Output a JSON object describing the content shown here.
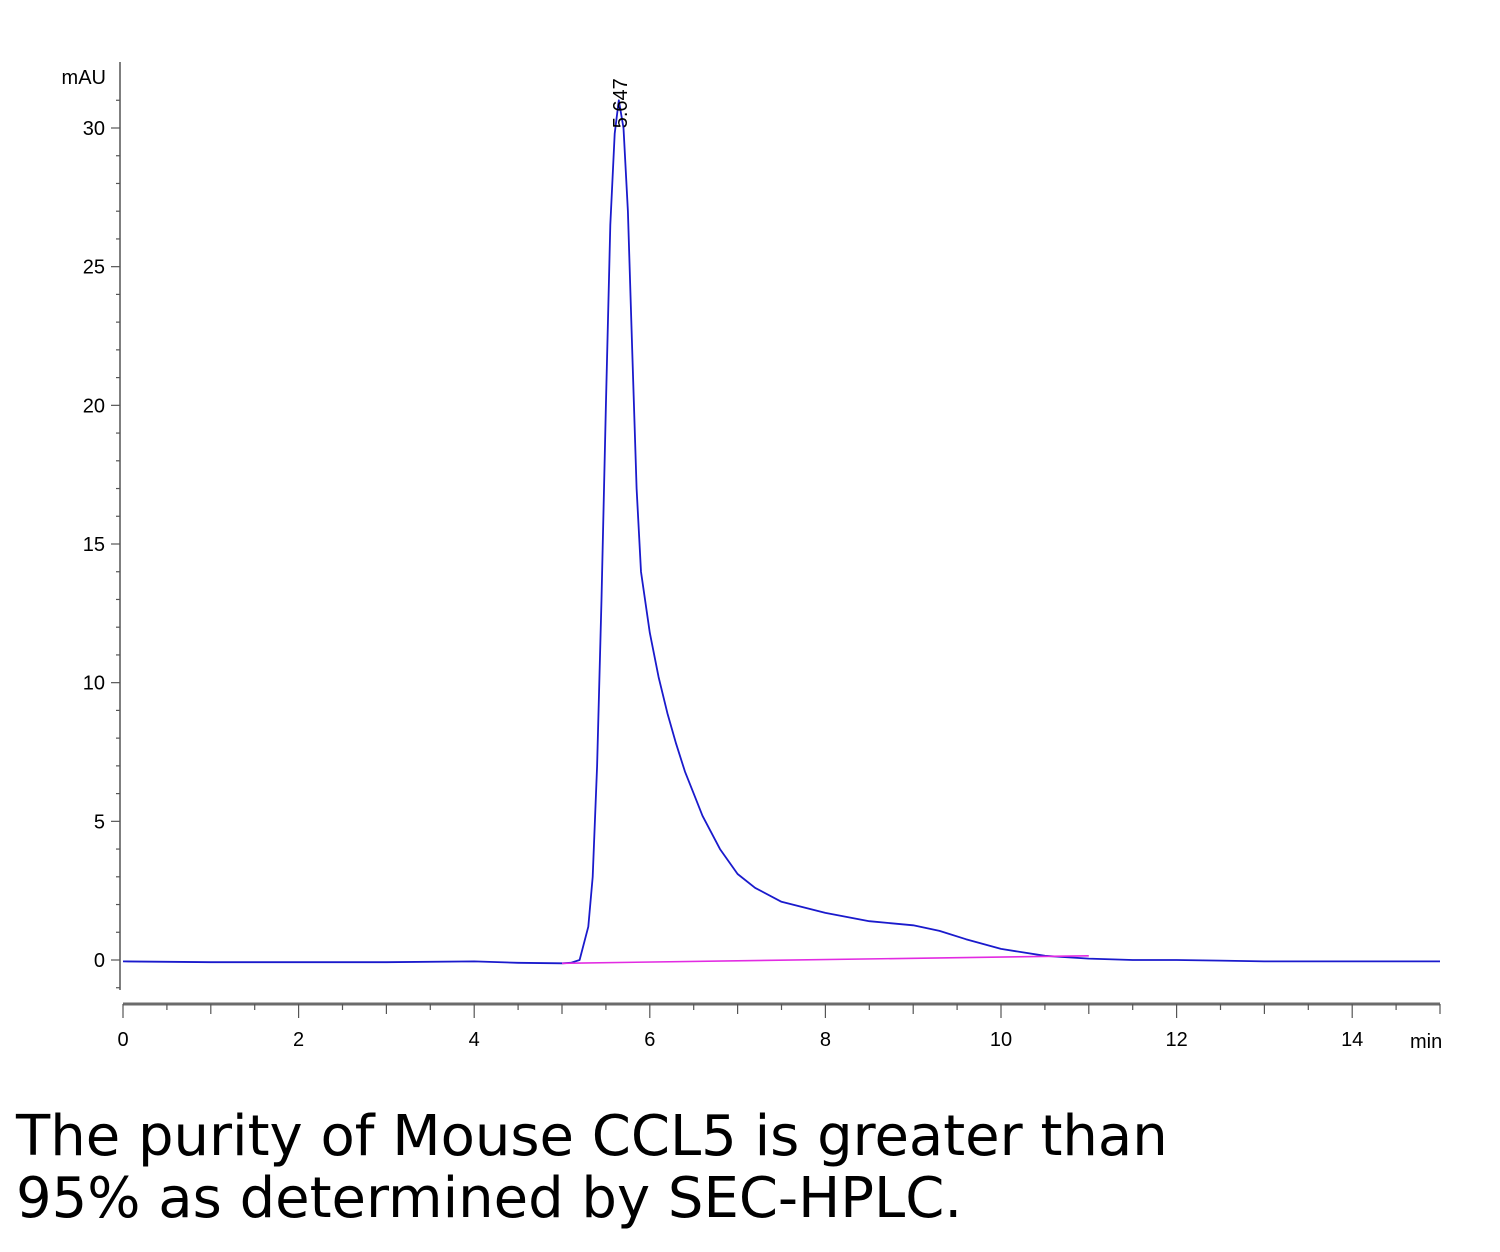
{
  "chart_data": {
    "type": "line",
    "ylabel": "mAU",
    "xlabel": "min",
    "xlim": [
      0,
      15
    ],
    "ylim": [
      -1.6,
      31.8
    ],
    "x_ticks": [
      0,
      2,
      4,
      6,
      8,
      10,
      12,
      14
    ],
    "y_ticks": [
      0,
      5,
      10,
      15,
      20,
      25,
      30
    ],
    "grid": false,
    "legend": "none",
    "peak_annotation": {
      "label": "5.647",
      "x": 5.647,
      "y": 31.0
    },
    "series": [
      {
        "color": "#1a1acc",
        "x": [
          0,
          1,
          2,
          3,
          4,
          4.5,
          5.0,
          5.1,
          5.2,
          5.3,
          5.35,
          5.4,
          5.45,
          5.5,
          5.55,
          5.6,
          5.647,
          5.7,
          5.75,
          5.8,
          5.85,
          5.9,
          6.0,
          6.1,
          6.2,
          6.3,
          6.4,
          6.5,
          6.6,
          6.8,
          7.0,
          7.2,
          7.5,
          8.0,
          8.5,
          9.0,
          9.3,
          9.6,
          10.0,
          10.5,
          11.0,
          11.5,
          12.0,
          12.5,
          13.0,
          14.0,
          15.0
        ],
        "y": [
          -0.05,
          -0.08,
          -0.08,
          -0.08,
          -0.05,
          -0.1,
          -0.12,
          -0.1,
          0.0,
          1.2,
          3.0,
          7.0,
          13.0,
          20.0,
          26.5,
          29.8,
          31.0,
          30.0,
          27.0,
          22.0,
          17.0,
          14.0,
          11.8,
          10.2,
          8.9,
          7.8,
          6.8,
          6.0,
          5.2,
          4.0,
          3.1,
          2.6,
          2.1,
          1.7,
          1.4,
          1.25,
          1.05,
          0.75,
          0.4,
          0.15,
          0.05,
          0.0,
          0.0,
          -0.02,
          -0.05,
          -0.05,
          -0.05
        ]
      },
      {
        "color": "#e22be2",
        "x": [
          5.0,
          11.0
        ],
        "y": [
          -0.12,
          0.15
        ]
      }
    ]
  },
  "caption": {
    "line1": "The purity of Mouse CCL5 is greater than",
    "line2": "95% as determined by SEC-HPLC."
  }
}
